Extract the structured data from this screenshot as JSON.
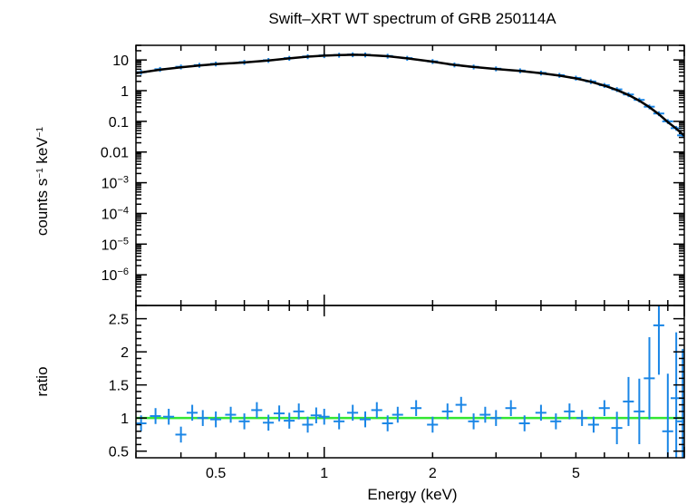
{
  "chart_data": [
    {
      "type": "scatter",
      "panel": "spectrum",
      "title": "Swift–XRT WT spectrum of GRB 250114A",
      "ylabel_parts": [
        "counts s",
        "−1",
        " keV",
        "−1"
      ],
      "xscale": "log",
      "yscale": "log",
      "xlim": [
        0.3,
        10
      ],
      "ylim": [
        1e-07,
        30
      ],
      "ytick_labels": [
        {
          "v": 10,
          "text": "10"
        },
        {
          "v": 1,
          "text": "1"
        },
        {
          "v": 0.1,
          "text": "0.1"
        },
        {
          "v": 0.01,
          "text": "0.01"
        },
        {
          "v": 0.001,
          "base": "10",
          "exp": "−3"
        },
        {
          "v": 0.0001,
          "base": "10",
          "exp": "−4"
        },
        {
          "v": 1e-05,
          "base": "10",
          "exp": "−5"
        },
        {
          "v": 1e-06,
          "base": "10",
          "exp": "−6"
        }
      ],
      "series": [
        {
          "role": "data",
          "color": "#1a86e6",
          "x": [
            0.31,
            0.35,
            0.4,
            0.45,
            0.5,
            0.6,
            0.7,
            0.8,
            0.9,
            1.0,
            1.1,
            1.2,
            1.3,
            1.5,
            1.7,
            2.0,
            2.3,
            2.6,
            3.0,
            3.5,
            4.0,
            4.5,
            5.0,
            5.5,
            6.0,
            6.5,
            7.0,
            7.5,
            8.0,
            8.5,
            9.0,
            9.5,
            9.9
          ],
          "y": [
            4.0,
            5.0,
            6.0,
            6.8,
            7.5,
            8.5,
            9.8,
            11.5,
            13.0,
            14.0,
            14.5,
            15.0,
            14.8,
            13.5,
            11.5,
            9.0,
            7.0,
            6.0,
            5.2,
            4.5,
            3.8,
            3.2,
            2.6,
            2.0,
            1.5,
            1.1,
            0.75,
            0.5,
            0.3,
            0.18,
            0.1,
            0.06,
            0.035
          ]
        },
        {
          "role": "model",
          "color": "#000000",
          "x": [
            0.3,
            0.35,
            0.4,
            0.45,
            0.5,
            0.6,
            0.7,
            0.8,
            0.9,
            1.0,
            1.1,
            1.2,
            1.3,
            1.5,
            1.7,
            2.0,
            2.3,
            2.6,
            3.0,
            3.5,
            4.0,
            4.5,
            5.0,
            5.5,
            6.0,
            6.5,
            7.0,
            7.5,
            8.0,
            8.5,
            9.0,
            9.5,
            10.0
          ],
          "y": [
            3.7,
            4.8,
            5.8,
            6.6,
            7.3,
            8.3,
            9.6,
            11.3,
            12.8,
            13.8,
            14.4,
            14.8,
            14.6,
            13.3,
            11.3,
            8.8,
            6.9,
            5.9,
            5.1,
            4.4,
            3.7,
            3.1,
            2.5,
            1.95,
            1.45,
            1.05,
            0.72,
            0.47,
            0.29,
            0.17,
            0.095,
            0.058,
            0.034
          ]
        }
      ]
    },
    {
      "type": "scatter",
      "panel": "ratio",
      "xlabel": "Energy (keV)",
      "ylabel": "ratio",
      "xscale": "log",
      "xlim": [
        0.3,
        10
      ],
      "ylim": [
        0.4,
        2.7
      ],
      "xtick_labels": [
        {
          "v": 0.5,
          "text": "0.5"
        },
        {
          "v": 1,
          "text": "1"
        },
        {
          "v": 2,
          "text": "2"
        },
        {
          "v": 5,
          "text": "5"
        }
      ],
      "ytick_labels": [
        {
          "v": 0.5,
          "text": "0.5"
        },
        {
          "v": 1,
          "text": "1"
        },
        {
          "v": 1.5,
          "text": "1.5"
        },
        {
          "v": 2,
          "text": "2"
        },
        {
          "v": 2.5,
          "text": "2.5"
        }
      ],
      "reference_line": {
        "y": 1,
        "color": "#33e633"
      },
      "series": [
        {
          "role": "data",
          "color": "#1a86e6",
          "x": [
            0.31,
            0.34,
            0.37,
            0.4,
            0.43,
            0.46,
            0.5,
            0.55,
            0.6,
            0.65,
            0.7,
            0.75,
            0.8,
            0.85,
            0.9,
            0.95,
            1.0,
            1.1,
            1.2,
            1.3,
            1.4,
            1.5,
            1.6,
            1.8,
            2.0,
            2.2,
            2.4,
            2.6,
            2.8,
            3.0,
            3.3,
            3.6,
            4.0,
            4.4,
            4.8,
            5.2,
            5.6,
            6.0,
            6.5,
            7.0,
            7.5,
            8.0,
            8.5,
            9.0,
            9.5,
            9.9
          ],
          "y": [
            0.92,
            1.03,
            1.02,
            0.75,
            1.08,
            1.0,
            0.98,
            1.05,
            0.95,
            1.12,
            0.93,
            1.07,
            0.96,
            1.1,
            0.9,
            1.04,
            1.02,
            0.95,
            1.08,
            0.98,
            1.12,
            0.92,
            1.05,
            1.15,
            0.9,
            1.1,
            1.2,
            0.95,
            1.05,
            1.0,
            1.15,
            0.92,
            1.08,
            0.95,
            1.1,
            1.0,
            0.9,
            1.15,
            0.85,
            1.25,
            1.1,
            1.6,
            2.4,
            0.8,
            1.3,
            0.95
          ]
        }
      ]
    }
  ]
}
